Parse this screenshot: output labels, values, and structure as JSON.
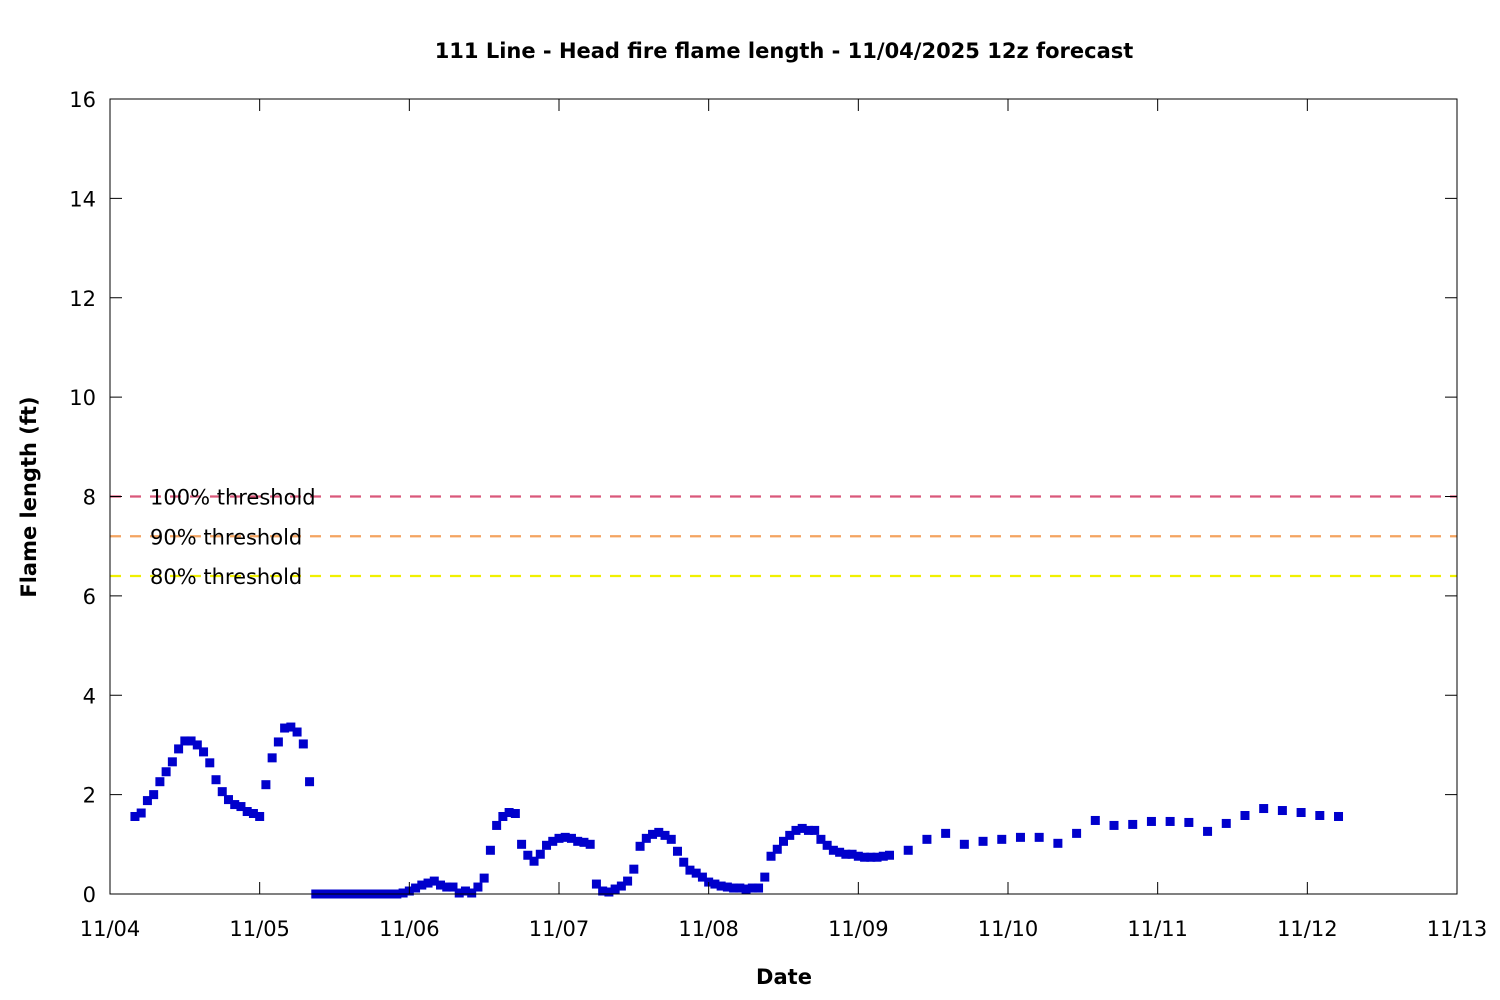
{
  "chart_data": {
    "type": "scatter",
    "title": "111 Line - Head fire flame length - 11/04/2025 12z forecast",
    "xlabel": "Date",
    "ylabel": "Flame length (ft)",
    "x_unit": "day",
    "xlim": [
      "11/04",
      "11/13"
    ],
    "ylim": [
      0,
      16
    ],
    "x_ticks": [
      "11/04",
      "11/05",
      "11/06",
      "11/07",
      "11/08",
      "11/09",
      "11/10",
      "11/11",
      "11/12",
      "11/13"
    ],
    "y_ticks": [
      0,
      2,
      4,
      6,
      8,
      10,
      12,
      14,
      16
    ],
    "grid": false,
    "legend_position": "left, inside plot",
    "series": [
      {
        "color": "#0000cc",
        "marker": "square",
        "points": [
          [
            "11/04 04:00",
            1.56
          ],
          [
            "11/04 05:00",
            1.63
          ],
          [
            "11/04 06:00",
            1.88
          ],
          [
            "11/04 07:00",
            2.0
          ],
          [
            "11/04 08:00",
            2.26
          ],
          [
            "11/04 09:00",
            2.46
          ],
          [
            "11/04 10:00",
            2.66
          ],
          [
            "11/04 11:00",
            2.92
          ],
          [
            "11/04 12:00",
            3.08
          ],
          [
            "11/04 13:00",
            3.08
          ],
          [
            "11/04 14:00",
            3.0
          ],
          [
            "11/04 15:00",
            2.86
          ],
          [
            "11/04 16:00",
            2.64
          ],
          [
            "11/04 17:00",
            2.3
          ],
          [
            "11/04 18:00",
            2.06
          ],
          [
            "11/04 19:00",
            1.9
          ],
          [
            "11/04 20:00",
            1.8
          ],
          [
            "11/04 21:00",
            1.76
          ],
          [
            "11/04 22:00",
            1.66
          ],
          [
            "11/04 23:00",
            1.62
          ],
          [
            "11/05 00:00",
            1.56
          ],
          [
            "11/05 01:00",
            2.2
          ],
          [
            "11/05 02:00",
            2.74
          ],
          [
            "11/05 03:00",
            3.06
          ],
          [
            "11/05 04:00",
            3.34
          ],
          [
            "11/05 05:00",
            3.36
          ],
          [
            "11/05 06:00",
            3.26
          ],
          [
            "11/05 07:00",
            3.02
          ],
          [
            "11/05 08:00",
            2.26
          ],
          [
            "11/05 09:00",
            0.0
          ],
          [
            "11/05 10:00",
            0.0
          ],
          [
            "11/05 11:00",
            0.0
          ],
          [
            "11/05 12:00",
            0.0
          ],
          [
            "11/05 13:00",
            0.0
          ],
          [
            "11/05 14:00",
            0.0
          ],
          [
            "11/05 15:00",
            0.0
          ],
          [
            "11/05 16:00",
            0.0
          ],
          [
            "11/05 17:00",
            0.0
          ],
          [
            "11/05 18:00",
            0.0
          ],
          [
            "11/05 19:00",
            0.0
          ],
          [
            "11/05 20:00",
            0.0
          ],
          [
            "11/05 21:00",
            0.0
          ],
          [
            "11/05 22:00",
            0.0
          ],
          [
            "11/05 23:00",
            0.02
          ],
          [
            "11/06 00:00",
            0.06
          ],
          [
            "11/06 01:00",
            0.12
          ],
          [
            "11/06 02:00",
            0.18
          ],
          [
            "11/06 03:00",
            0.22
          ],
          [
            "11/06 04:00",
            0.26
          ],
          [
            "11/06 05:00",
            0.18
          ],
          [
            "11/06 06:00",
            0.14
          ],
          [
            "11/06 07:00",
            0.14
          ],
          [
            "11/06 08:00",
            0.02
          ],
          [
            "11/06 09:00",
            0.06
          ],
          [
            "11/06 10:00",
            0.02
          ],
          [
            "11/06 11:00",
            0.14
          ],
          [
            "11/06 12:00",
            0.32
          ],
          [
            "11/06 13:00",
            0.88
          ],
          [
            "11/06 14:00",
            1.38
          ],
          [
            "11/06 15:00",
            1.56
          ],
          [
            "11/06 16:00",
            1.64
          ],
          [
            "11/06 17:00",
            1.62
          ],
          [
            "11/06 18:00",
            1.0
          ],
          [
            "11/06 19:00",
            0.78
          ],
          [
            "11/06 20:00",
            0.66
          ],
          [
            "11/06 21:00",
            0.8
          ],
          [
            "11/06 22:00",
            0.98
          ],
          [
            "11/06 23:00",
            1.06
          ],
          [
            "11/07 00:00",
            1.12
          ],
          [
            "11/07 01:00",
            1.14
          ],
          [
            "11/07 02:00",
            1.12
          ],
          [
            "11/07 03:00",
            1.06
          ],
          [
            "11/07 04:00",
            1.04
          ],
          [
            "11/07 05:00",
            1.0
          ],
          [
            "11/07 06:00",
            0.2
          ],
          [
            "11/07 07:00",
            0.06
          ],
          [
            "11/07 08:00",
            0.04
          ],
          [
            "11/07 09:00",
            0.1
          ],
          [
            "11/07 10:00",
            0.16
          ],
          [
            "11/07 11:00",
            0.26
          ],
          [
            "11/07 12:00",
            0.5
          ],
          [
            "11/07 13:00",
            0.96
          ],
          [
            "11/07 14:00",
            1.12
          ],
          [
            "11/07 15:00",
            1.2
          ],
          [
            "11/07 16:00",
            1.24
          ],
          [
            "11/07 17:00",
            1.18
          ],
          [
            "11/07 18:00",
            1.1
          ],
          [
            "11/07 19:00",
            0.86
          ],
          [
            "11/07 20:00",
            0.64
          ],
          [
            "11/07 21:00",
            0.48
          ],
          [
            "11/07 22:00",
            0.42
          ],
          [
            "11/07 23:00",
            0.34
          ],
          [
            "11/08 00:00",
            0.24
          ],
          [
            "11/08 01:00",
            0.2
          ],
          [
            "11/08 02:00",
            0.16
          ],
          [
            "11/08 03:00",
            0.14
          ],
          [
            "11/08 04:00",
            0.12
          ],
          [
            "11/08 05:00",
            0.12
          ],
          [
            "11/08 06:00",
            0.1
          ],
          [
            "11/08 07:00",
            0.12
          ],
          [
            "11/08 08:00",
            0.12
          ],
          [
            "11/08 09:00",
            0.34
          ],
          [
            "11/08 10:00",
            0.76
          ],
          [
            "11/08 11:00",
            0.9
          ],
          [
            "11/08 12:00",
            1.06
          ],
          [
            "11/08 13:00",
            1.18
          ],
          [
            "11/08 14:00",
            1.28
          ],
          [
            "11/08 15:00",
            1.32
          ],
          [
            "11/08 16:00",
            1.28
          ],
          [
            "11/08 17:00",
            1.28
          ],
          [
            "11/08 18:00",
            1.1
          ],
          [
            "11/08 19:00",
            0.98
          ],
          [
            "11/08 20:00",
            0.88
          ],
          [
            "11/08 21:00",
            0.84
          ],
          [
            "11/08 22:00",
            0.8
          ],
          [
            "11/08 23:00",
            0.8
          ],
          [
            "11/09 00:00",
            0.76
          ],
          [
            "11/09 01:00",
            0.74
          ],
          [
            "11/09 02:00",
            0.74
          ],
          [
            "11/09 03:00",
            0.74
          ],
          [
            "11/09 04:00",
            0.76
          ],
          [
            "11/09 05:00",
            0.78
          ],
          [
            "11/09 08:00",
            0.88
          ],
          [
            "11/09 11:00",
            1.1
          ],
          [
            "11/09 14:00",
            1.22
          ],
          [
            "11/09 17:00",
            1.0
          ],
          [
            "11/09 20:00",
            1.06
          ],
          [
            "11/09 23:00",
            1.1
          ],
          [
            "11/10 02:00",
            1.14
          ],
          [
            "11/10 05:00",
            1.14
          ],
          [
            "11/10 08:00",
            1.02
          ],
          [
            "11/10 11:00",
            1.22
          ],
          [
            "11/10 14:00",
            1.48
          ],
          [
            "11/10 17:00",
            1.38
          ],
          [
            "11/10 20:00",
            1.4
          ],
          [
            "11/10 23:00",
            1.46
          ],
          [
            "11/11 02:00",
            1.46
          ],
          [
            "11/11 05:00",
            1.44
          ],
          [
            "11/11 08:00",
            1.26
          ],
          [
            "11/11 11:00",
            1.42
          ],
          [
            "11/11 14:00",
            1.58
          ],
          [
            "11/11 17:00",
            1.72
          ],
          [
            "11/11 20:00",
            1.68
          ],
          [
            "11/11 23:00",
            1.64
          ],
          [
            "11/12 02:00",
            1.58
          ],
          [
            "11/12 05:00",
            1.56
          ]
        ]
      }
    ],
    "thresholds": [
      {
        "name": "100% threshold",
        "value": 8.0,
        "color": "#d9587a"
      },
      {
        "name": "90% threshold",
        "value": 7.2,
        "color": "#f4a460"
      },
      {
        "name": "80% threshold",
        "value": 6.4,
        "color": "#f0f000"
      }
    ]
  }
}
